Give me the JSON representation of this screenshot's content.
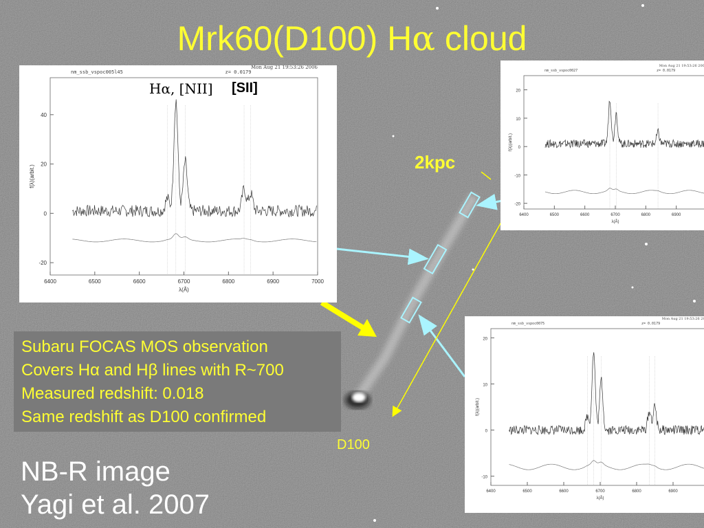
{
  "slide": {
    "title_prefix": "Mrk60(D100) H",
    "title_greek": "α",
    "title_suffix": " cloud",
    "scale_label": "2kpc",
    "galaxy_label": "D100",
    "info_lines": [
      "Subaru FOCAS MOS observation",
      "Covers Hα and Hβ lines with R~700",
      "Measured redshift: 0.018",
      "Same redshift as D100 confirmed"
    ],
    "credit_lines": [
      "NB-R image",
      "Yagi et al. 2007"
    ],
    "colors": {
      "title": "#ffff33",
      "arrow_cyan": "#aaf4ff",
      "arrow_yellow": "#ffff00",
      "background": "#7d7d7d"
    }
  },
  "chart_data": [
    {
      "type": "line",
      "header_left": "nm_ssb_vspoc005l45",
      "header_mid": "z= 0.0179",
      "header_right": "Mon Aug 21 19:53:26 2006",
      "annotations": [
        "Hα, [NII]",
        "[SII]"
      ],
      "xlabel": "λ(Å)",
      "ylabel": "f(λ)(arbit.)",
      "xlim": [
        6400,
        7000
      ],
      "ylim": [
        -25,
        55
      ],
      "xticks": [
        "6400",
        "6500",
        "6600",
        "6700",
        "6800",
        "6900",
        "7000"
      ],
      "yticks": [
        "-20",
        "0",
        "20",
        "40"
      ],
      "lines": [
        {
          "center": 6663,
          "amp": 5
        },
        {
          "center": 6682,
          "amp": 45
        },
        {
          "center": 6703,
          "amp": 20
        },
        {
          "center": 6835,
          "amp": 9
        },
        {
          "center": 6850,
          "amp": 7
        }
      ],
      "continuum": 1,
      "error_level": -11
    },
    {
      "type": "line",
      "header_left": "nm_ssb_vspoc0027",
      "header_mid": "z= 0.0179",
      "header_right": "Mon Aug 21 19:53:26 2006",
      "xlabel": "λ(Å)",
      "ylabel": "f(λ)(arbit.)",
      "xlim": [
        6400,
        7000
      ],
      "ylim": [
        -22,
        25
      ],
      "xticks": [
        "6400",
        "6500",
        "6600",
        "6700",
        "6800",
        "6900"
      ],
      "yticks": [
        "-20",
        "-10",
        "0",
        "10",
        "20"
      ],
      "lines": [
        {
          "center": 6682,
          "amp": 16
        },
        {
          "center": 6703,
          "amp": 11
        },
        {
          "center": 6840,
          "amp": 4
        }
      ],
      "continuum": 1,
      "error_level": -16
    },
    {
      "type": "line",
      "header_left": "nm_ssb_vspoc0075",
      "header_mid": "z= 0.0179",
      "header_right": "Mon Aug 21 19:53:26 2006",
      "xlabel": "λ(Å)",
      "ylabel": "f(λ)(arbit.)",
      "xlim": [
        6400,
        7000
      ],
      "ylim": [
        -12,
        22
      ],
      "xticks": [
        "6400",
        "6500",
        "6600",
        "6700",
        "6800",
        "6900"
      ],
      "yticks": [
        "-10",
        "0",
        "10",
        "20"
      ],
      "lines": [
        {
          "center": 6665,
          "amp": 3
        },
        {
          "center": 6682,
          "amp": 17
        },
        {
          "center": 6703,
          "amp": 11
        },
        {
          "center": 6835,
          "amp": 4
        },
        {
          "center": 6850,
          "amp": 5
        }
      ],
      "continuum": 0,
      "error_level": -8
    }
  ]
}
